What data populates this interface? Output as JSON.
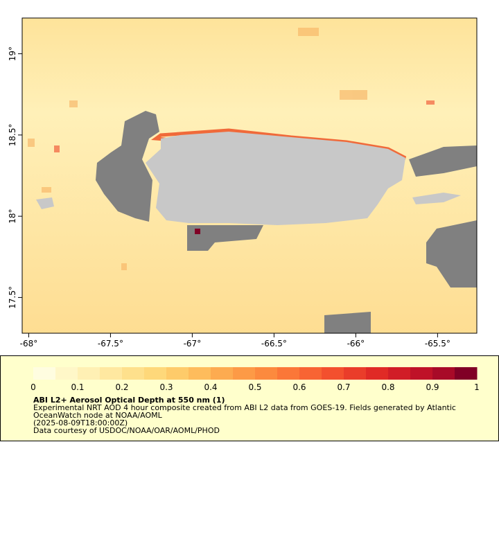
{
  "chart_data": {
    "type": "map",
    "title": "ABI L2+ Aerosol Optical Depth at 550 nm (1)",
    "description": [
      "Experimental NRT AOD 4 hour composite created from ABI L2 data from GOES-19. Fields generated by Atlantic",
      "OceanWatch node at NOAA/AOML",
      "(2025-08-09T18:00:00Z)",
      "Data courtesy of USDOC/NOAA/OAR/AOML/PHOD"
    ],
    "xlim": [
      -68.04,
      -65.26
    ],
    "xticks": [
      {
        "value": -68,
        "label": "-68°"
      },
      {
        "value": -67.5,
        "label": "-67.5°"
      },
      {
        "value": -67,
        "label": "-67°"
      },
      {
        "value": -66.5,
        "label": "-66.5°"
      },
      {
        "value": -66,
        "label": "-66°"
      },
      {
        "value": -65.5,
        "label": "-65.5°"
      }
    ],
    "ylim": [
      17.28,
      19.22
    ],
    "yticks": [
      {
        "value": 17.5,
        "label": "17.5°"
      },
      {
        "value": 18,
        "label": "18°"
      },
      {
        "value": 18.5,
        "label": "18.5°"
      },
      {
        "value": 19,
        "label": "19°"
      }
    ],
    "colorbar": {
      "lim": [
        0,
        1
      ],
      "ticks": [
        0,
        0.1,
        0.2,
        0.3,
        0.4,
        0.5,
        0.6,
        0.7,
        0.8,
        0.9,
        1
      ],
      "colors": [
        "#fffde0",
        "#fff7c8",
        "#fff0b4",
        "#ffe8a0",
        "#fee08c",
        "#fed87a",
        "#fecb6a",
        "#febc5c",
        "#fdab50",
        "#fd9a46",
        "#fc8a3e",
        "#fb7738",
        "#f86433",
        "#f3502e",
        "#ea3d2a",
        "#e02a26",
        "#d11d27",
        "#bf1228",
        "#a80a28",
        "#800026"
      ]
    }
  }
}
